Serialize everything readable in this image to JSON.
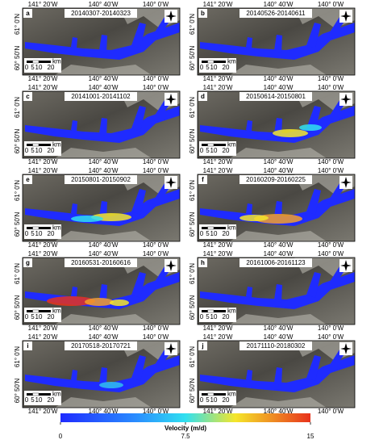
{
  "panels": [
    {
      "label": "a",
      "dates": "20140307-20140323"
    },
    {
      "label": "b",
      "dates": "20140526-20140611"
    },
    {
      "label": "c",
      "dates": "20141001-20141102"
    },
    {
      "label": "d",
      "dates": "20150614-20150801"
    },
    {
      "label": "e",
      "dates": "20150801-20150902"
    },
    {
      "label": "f",
      "dates": "20160209-20160225"
    },
    {
      "label": "g",
      "dates": "20160531-20160616"
    },
    {
      "label": "h",
      "dates": "20161006-20161123"
    },
    {
      "label": "i",
      "dates": "20170518-20170721"
    },
    {
      "label": "j",
      "dates": "20171110-20180302"
    }
  ],
  "axes": {
    "lon_labels": [
      "141° 20'W",
      "140° 40'W",
      "140° 0'W"
    ],
    "lat_labels": [
      "61° 0'N",
      "60° 50'N"
    ]
  },
  "scale_bar": {
    "ticks": [
      0,
      5,
      10,
      20
    ],
    "unit": "km"
  },
  "colorbar": {
    "title": "Velocity (m/d)",
    "range": [
      0,
      15
    ],
    "ticks": [
      0,
      7.5,
      15
    ]
  }
}
